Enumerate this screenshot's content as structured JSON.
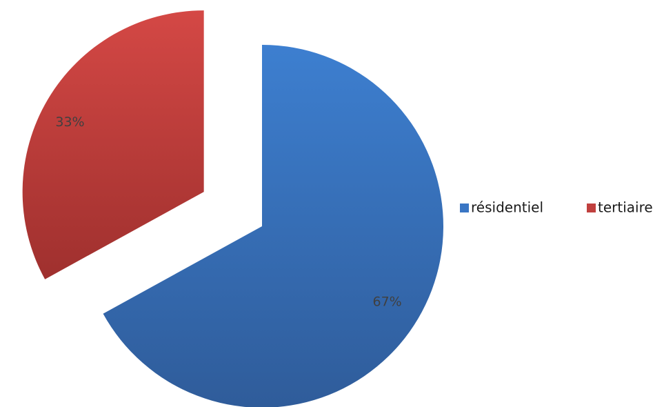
{
  "chart_data": {
    "type": "pie",
    "title": "",
    "exploded": true,
    "start_angle_deg": 0,
    "direction": "clockwise",
    "legend_position": "right",
    "series": [
      {
        "slices": [
          {
            "label": "résidentiel",
            "value": 67,
            "display": "67%",
            "color": "#3a76c4",
            "gradient": [
              "#3d7fd0",
              "#2f5c9a"
            ]
          },
          {
            "label": "tertiaire",
            "value": 33,
            "display": "33%",
            "color": "#c0403e",
            "gradient": [
              "#d44845",
              "#9f302e"
            ]
          }
        ]
      }
    ]
  }
}
